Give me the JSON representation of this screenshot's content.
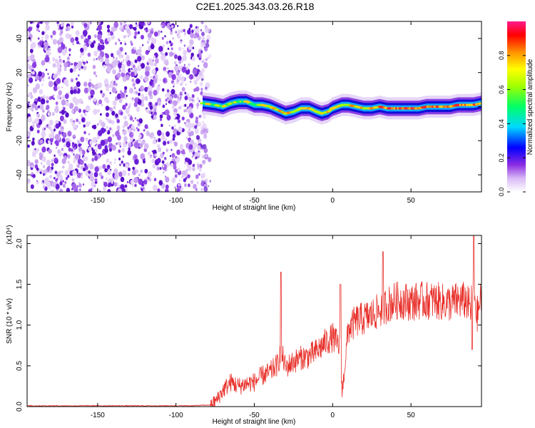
{
  "figure_title": "C2E1.2025.343.03.26.R18",
  "chart_data": [
    {
      "type": "heatmap",
      "title": "C2E1.2025.343.03.26.R18",
      "xlabel": "Height of straight line (km)",
      "ylabel": "Frequency (Hz)",
      "xlim": [
        -195,
        95
      ],
      "ylim": [
        -50,
        50
      ],
      "xticks": [
        -150,
        -100,
        -50,
        0,
        50
      ],
      "xtick_labels": [
        "-150",
        "-100",
        "-50",
        "0",
        "50"
      ],
      "yticks": [
        -40,
        -20,
        0,
        20,
        40
      ],
      "ytick_labels": [
        "-40",
        "-20",
        "0",
        "20",
        "40"
      ],
      "noise_region_x": [
        -195,
        -78
      ],
      "ridge": {
        "x": [
          -83,
          -75,
          -70,
          -65,
          -60,
          -55,
          -50,
          -45,
          -40,
          -35,
          -30,
          -25,
          -20,
          -15,
          -10,
          -7,
          -3,
          0,
          3,
          6,
          10,
          15,
          20,
          25,
          30,
          35,
          40,
          45,
          50,
          55,
          60,
          65,
          70,
          75,
          80,
          85,
          90,
          95
        ],
        "freq_hz": [
          2,
          1,
          0,
          2,
          3,
          3,
          1,
          1,
          0,
          -2,
          -4,
          -3,
          -1,
          -1,
          -3,
          -4,
          -3,
          -1,
          0,
          1,
          1,
          0,
          -1,
          -1,
          0,
          -1,
          -1,
          -1,
          -1,
          -1,
          0,
          0,
          0,
          0,
          1,
          1,
          1,
          2
        ]
      },
      "colorbar": {
        "label": "Normalized spectral amplitude",
        "range": [
          0,
          1
        ],
        "ticks": [
          0.0,
          0.2,
          0.4,
          0.6,
          0.8
        ],
        "tick_labels": [
          "0.0",
          "0.2",
          "0.4",
          "0.6",
          "0.8"
        ]
      }
    },
    {
      "type": "line",
      "xlabel": "Height of straight line (km)",
      "ylabel": "SNR (10 * v/v)",
      "y_multiplier_label": "(x10⁴)",
      "xlim": [
        -195,
        95
      ],
      "ylim": [
        0,
        2.1
      ],
      "xticks": [
        -150,
        -100,
        -50,
        0,
        50
      ],
      "xtick_labels": [
        "-150",
        "-100",
        "-50",
        "0",
        "50"
      ],
      "yticks": [
        0.0,
        0.5,
        1.0,
        1.5,
        2.0
      ],
      "ytick_labels": [
        "0.0",
        "0.5",
        "1.0",
        "1.5",
        "2.0"
      ],
      "color": "#e8302a",
      "series": [
        {
          "name": "SNR",
          "x": [
            -195,
            -160,
            -120,
            -90,
            -78,
            -74,
            -70,
            -65,
            -60,
            -55,
            -50,
            -45,
            -40,
            -35,
            -33,
            -30,
            -25,
            -20,
            -15,
            -10,
            -5,
            0,
            5,
            6,
            10,
            15,
            20,
            25,
            30,
            35,
            40,
            45,
            50,
            55,
            60,
            65,
            70,
            75,
            80,
            85,
            88,
            90,
            92,
            95
          ],
          "values": [
            0.01,
            0.01,
            0.01,
            0.01,
            0.02,
            0.08,
            0.2,
            0.3,
            0.25,
            0.28,
            0.3,
            0.38,
            0.42,
            0.52,
            0.68,
            0.48,
            0.55,
            0.6,
            0.62,
            0.68,
            0.78,
            0.85,
            0.72,
            0.15,
            0.95,
            1.05,
            1.08,
            1.12,
            1.18,
            1.25,
            1.3,
            1.3,
            1.28,
            1.3,
            1.3,
            1.3,
            1.28,
            1.27,
            1.3,
            1.3,
            1.2,
            1.5,
            1.1,
            1.35
          ]
        }
      ],
      "spikes": [
        {
          "x": -33,
          "value": 1.65
        },
        {
          "x": 5,
          "value": 1.5
        },
        {
          "x": 32,
          "value": 1.9
        },
        {
          "x": 90,
          "value": 2.1
        },
        {
          "x": 89,
          "value": 0.7
        }
      ]
    }
  ]
}
